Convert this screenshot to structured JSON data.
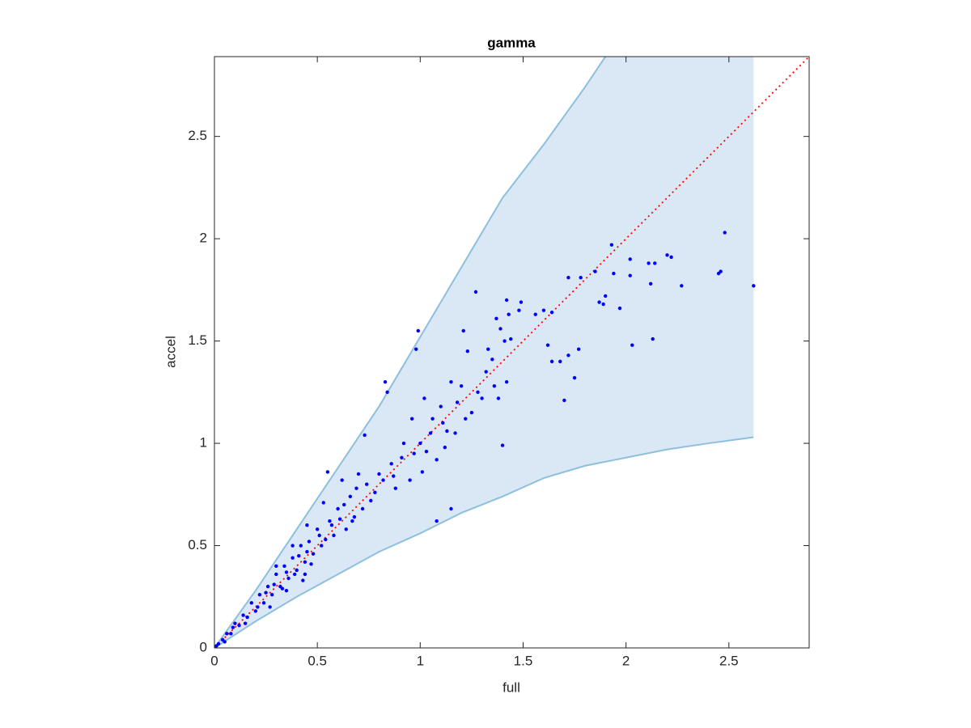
{
  "chart_data": {
    "type": "scatter",
    "title": "gamma",
    "x_label": "full",
    "y_label": "accel",
    "xlim": [
      0,
      2.89
    ],
    "ylim": [
      0,
      2.89
    ],
    "xticks": [
      0,
      0.5,
      1,
      1.5,
      2,
      2.5
    ],
    "yticks": [
      0,
      0.5,
      1,
      1.5,
      2,
      2.5
    ],
    "grid": false,
    "band": {
      "color": "#d9e8f4",
      "edge_color": "#8dbfdf",
      "x": [
        0,
        0.2,
        0.4,
        0.6,
        0.8,
        1.0,
        1.2,
        1.4,
        1.6,
        1.8,
        2.0,
        2.2,
        2.4,
        2.62
      ],
      "upper": [
        0,
        0.28,
        0.58,
        0.88,
        1.18,
        1.52,
        1.86,
        2.2,
        2.46,
        2.74,
        3.04,
        3.34,
        3.64,
        3.98
      ],
      "lower": [
        0,
        0.13,
        0.25,
        0.36,
        0.47,
        0.56,
        0.66,
        0.74,
        0.83,
        0.89,
        0.93,
        0.97,
        1.0,
        1.03
      ]
    },
    "reference_line": {
      "color": "#ff0000",
      "x": [
        0,
        2.89
      ],
      "values": [
        0,
        2.89
      ]
    },
    "series": [
      {
        "color": "#0000ff",
        "x": [
          2.62,
          2.48,
          2.46,
          2.45,
          2.27,
          2.22,
          2.2,
          2.14,
          2.11,
          2.12,
          2.13,
          2.03,
          2.02,
          2.02,
          1.93,
          1.94,
          1.9,
          1.89,
          1.87,
          1.97,
          1.85,
          1.78,
          1.72,
          1.7,
          1.75,
          1.77,
          1.72,
          1.68,
          1.64,
          1.62,
          1.64,
          1.6,
          1.56,
          1.49,
          1.48,
          1.42,
          1.43,
          1.39,
          1.37,
          1.27,
          1.33,
          1.35,
          1.41,
          1.44,
          1.4,
          1.21,
          1.23,
          1.2,
          1.15,
          1.11,
          1.05,
          1.02,
          0.99,
          0.98,
          0.96,
          0.91,
          0.83,
          0.84,
          0.73,
          0.7,
          0.55,
          1.08,
          1.15,
          1.3,
          1.25,
          1.17,
          1.12,
          1.08,
          1.01,
          0.95,
          0.88,
          0.86,
          0.8,
          0.76,
          0.74,
          0.68,
          0.66,
          0.64,
          0.6,
          0.58,
          0.56,
          0.52,
          0.5,
          0.48,
          0.46,
          0.44,
          0.42,
          0.4,
          0.38,
          0.36,
          0.34,
          0.32,
          0.3,
          0.28,
          0.26,
          0.24,
          0.22,
          0.2,
          0.18,
          0.16,
          0.14,
          0.12,
          0.1,
          0.08,
          0.06,
          0.04,
          0.02,
          0.01,
          0.05,
          0.09,
          0.15,
          0.21,
          0.25,
          0.29,
          0.33,
          0.35,
          0.39,
          0.41,
          0.45,
          0.47,
          0.51,
          0.54,
          0.57,
          0.61,
          0.63,
          0.67,
          0.69,
          0.72,
          0.78,
          0.82,
          0.87,
          0.92,
          0.97,
          1.0,
          1.03,
          1.06,
          1.1,
          1.13,
          1.18,
          1.22,
          1.28,
          1.32,
          1.36,
          1.38,
          1.42,
          0.53,
          0.62,
          0.45,
          0.38,
          0.3,
          0.27,
          0.35,
          0.44,
          0.43
        ],
        "values": [
          1.77,
          2.03,
          1.84,
          1.83,
          1.77,
          1.91,
          1.92,
          1.88,
          1.88,
          1.78,
          1.51,
          1.48,
          1.82,
          1.9,
          1.97,
          1.83,
          1.72,
          1.68,
          1.69,
          1.66,
          1.84,
          1.81,
          1.81,
          1.21,
          1.32,
          1.46,
          1.43,
          1.4,
          1.4,
          1.48,
          1.64,
          1.65,
          1.63,
          1.69,
          1.65,
          1.7,
          1.63,
          1.56,
          1.61,
          1.74,
          1.46,
          1.41,
          1.5,
          1.51,
          0.99,
          1.55,
          1.45,
          1.28,
          1.3,
          1.1,
          1.05,
          1.22,
          1.55,
          1.46,
          1.12,
          0.93,
          1.3,
          1.25,
          1.04,
          0.85,
          0.86,
          0.62,
          0.68,
          1.22,
          1.15,
          1.05,
          0.98,
          0.92,
          0.86,
          0.82,
          0.78,
          0.9,
          0.85,
          0.72,
          0.8,
          0.64,
          0.74,
          0.58,
          0.68,
          0.55,
          0.62,
          0.5,
          0.58,
          0.46,
          0.52,
          0.42,
          0.5,
          0.38,
          0.44,
          0.34,
          0.4,
          0.3,
          0.36,
          0.26,
          0.3,
          0.22,
          0.26,
          0.18,
          0.22,
          0.15,
          0.16,
          0.11,
          0.12,
          0.07,
          0.07,
          0.04,
          0.02,
          0.01,
          0.03,
          0.1,
          0.12,
          0.2,
          0.27,
          0.31,
          0.29,
          0.37,
          0.36,
          0.45,
          0.47,
          0.41,
          0.55,
          0.53,
          0.6,
          0.63,
          0.7,
          0.62,
          0.78,
          0.68,
          0.76,
          0.82,
          0.84,
          1.0,
          0.95,
          1.0,
          0.96,
          1.12,
          1.18,
          1.06,
          1.2,
          1.12,
          1.25,
          1.35,
          1.28,
          1.22,
          1.3,
          0.71,
          0.82,
          0.6,
          0.5,
          0.4,
          0.2,
          0.28,
          0.36,
          0.33
        ]
      }
    ]
  }
}
